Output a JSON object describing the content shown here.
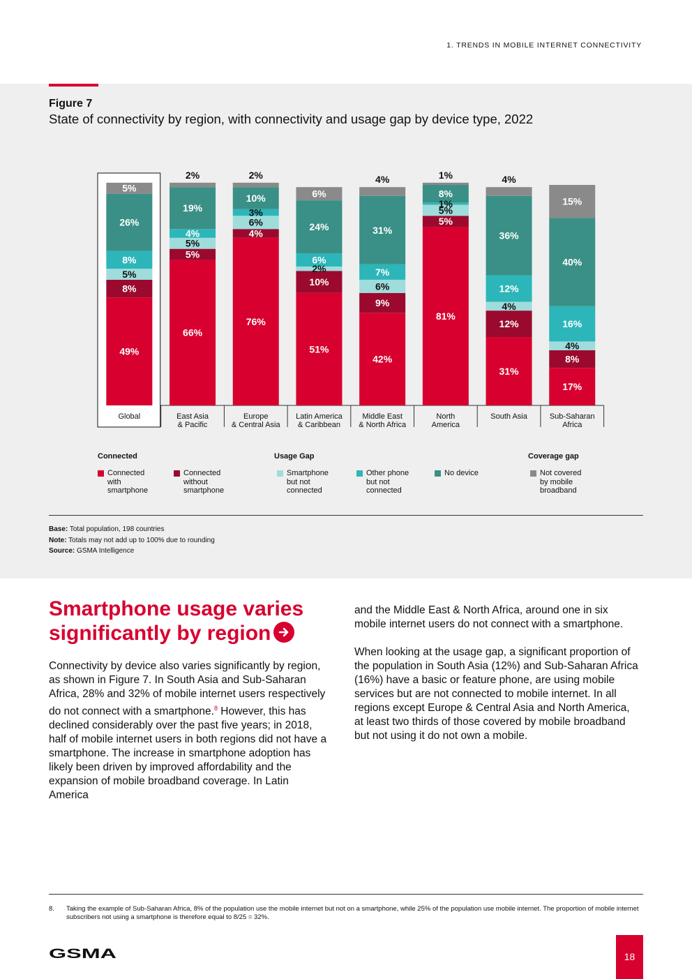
{
  "header": {
    "section": "1. TRENDS IN MOBILE INTERNET CONNECTIVITY"
  },
  "figure": {
    "number": "Figure 7",
    "title": "State of connectivity by region, with connectivity and usage gap by device type, 2022"
  },
  "colors": {
    "connected_smartphone": "#d8002f",
    "connected_without_smartphone": "#9b0a2e",
    "smartphone_not_connected": "#9fdcdc",
    "other_phone_not_connected": "#2cb6b9",
    "no_device": "#3a9086",
    "not_covered": "#8a8a8a",
    "accent": "#d8002f"
  },
  "chart_data": {
    "type": "bar",
    "stacked": true,
    "title": "State of connectivity by region, with connectivity and usage gap by device type, 2022",
    "ylim": [
      0,
      100
    ],
    "categories": [
      "Global",
      "East Asia\n& Pacific",
      "Europe\n& Central Asia",
      "Latin America\n& Caribbean",
      "Middle East\n& North Africa",
      "North\nAmerica",
      "South Asia",
      "Sub-Saharan\nAfrica"
    ],
    "series": [
      {
        "name": "Connected with smartphone",
        "key": "connected_smartphone",
        "values": [
          49,
          66,
          76,
          51,
          42,
          81,
          31,
          17
        ],
        "labels": [
          "49%",
          "66%",
          "76%",
          "51%",
          "42%",
          "81%",
          "31%",
          "17%"
        ]
      },
      {
        "name": "Connected without smartphone",
        "key": "connected_without_smartphone",
        "values": [
          8,
          5,
          4,
          10,
          9,
          5,
          12,
          8
        ],
        "labels": [
          "8%",
          "5%",
          "4%",
          "10%",
          "9%",
          "5%",
          "12%",
          "8%"
        ]
      },
      {
        "name": "Smartphone but not connected",
        "key": "smartphone_not_connected",
        "values": [
          5,
          5,
          6,
          2,
          6,
          5,
          4,
          4
        ],
        "labels": [
          "5%",
          "5%",
          "6%",
          "2%",
          "6%",
          "5%",
          "4%",
          "4%"
        ]
      },
      {
        "name": "Other phone but not connected",
        "key": "other_phone_not_connected",
        "values": [
          8,
          4,
          3,
          6,
          7,
          1,
          12,
          16
        ],
        "labels": [
          "8%",
          "4%",
          "3%",
          "6%",
          "7%",
          "1%",
          "12%",
          "16%"
        ]
      },
      {
        "name": "No device",
        "key": "no_device",
        "values": [
          26,
          19,
          10,
          24,
          31,
          8,
          36,
          40
        ],
        "labels": [
          "26%",
          "19%",
          "10%",
          "24%",
          "31%",
          "8%",
          "36%",
          "40%"
        ]
      },
      {
        "name": "Not covered by mobile broadband",
        "key": "not_covered",
        "values": [
          5,
          2,
          2,
          6,
          4,
          1,
          4,
          15
        ],
        "labels": [
          "5%",
          "2%",
          "2%",
          "6%",
          "4%",
          "1%",
          "4%",
          "15%"
        ]
      }
    ],
    "highlighted_category": "Global"
  },
  "legend": {
    "connected_heading": "Connected",
    "usage_gap_heading": "Usage Gap",
    "coverage_gap_heading": "Coverage gap",
    "items": [
      {
        "key": "connected_smartphone",
        "label": "Connected\nwith\nsmartphone"
      },
      {
        "key": "connected_without_smartphone",
        "label": "Connected\nwithout\nsmartphone"
      },
      {
        "key": "smartphone_not_connected",
        "label": "Smartphone\nbut not\nconnected"
      },
      {
        "key": "other_phone_not_connected",
        "label": "Other phone\nbut not\nconnected"
      },
      {
        "key": "no_device",
        "label": "No device"
      },
      {
        "key": "not_covered",
        "label": "Not covered\nby mobile\nbroadband"
      }
    ]
  },
  "notes": {
    "base_label": "Base:",
    "base_text": " Total population, 198 countries",
    "note_label": "Note:",
    "note_text": " Totals may not add up to 100% due to rounding",
    "source_label": "Source:",
    "source_text": " GSMA Intelligence"
  },
  "article": {
    "headline_line1": "Smartphone usage varies",
    "headline_line2": "significantly by region",
    "left_before_sup": "Connectivity by device also varies significantly by region, as shown in Figure 7. In South Asia and Sub-Saharan Africa, 28% and 32% of mobile internet users respectively do not connect with a smartphone.",
    "footnote_ref": "8",
    "left_after_sup": " However, this has declined considerably over the past five years; in 2018, half of mobile internet users in both regions did not have a smartphone. The increase in smartphone adoption has likely been driven by improved affordability and the expansion of mobile broadband coverage. In Latin America",
    "right_para1": "and the Middle East & North Africa, around one in six mobile internet users do not connect with a smartphone.",
    "right_para2": "When looking at the usage gap, a significant proportion of the population in South Asia (12%) and Sub-Saharan Africa (16%) have a basic or feature phone, are using mobile services but are not connected to mobile internet. In all regions except Europe & Central Asia and North America, at least two thirds of those covered by mobile broadband but not using it do not own a mobile."
  },
  "footnote": {
    "number": "8.",
    "text": "Taking the example of Sub-Saharan Africa, 8% of the population use the mobile internet but not on a smartphone, while 25% of the population use mobile internet. The proportion of mobile internet subscribers not using a smartphone is therefore equal to 8/25 = 32%."
  },
  "footer": {
    "logo_text": "GSMA",
    "page_number": "18"
  }
}
